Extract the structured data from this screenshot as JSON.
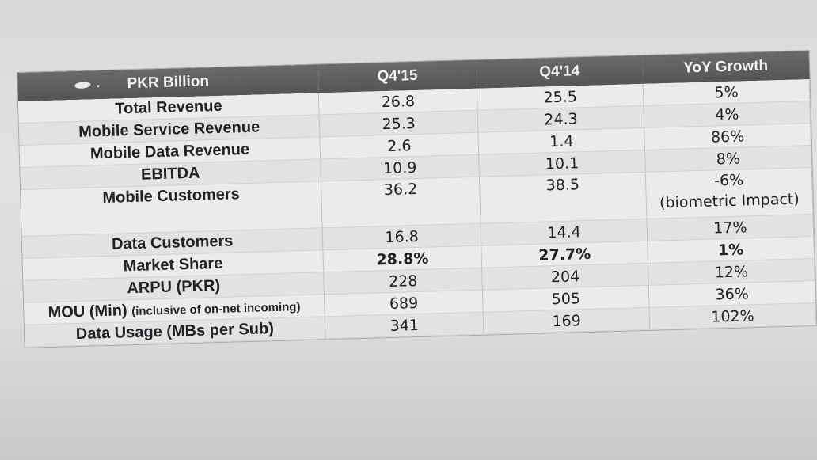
{
  "table": {
    "headers": [
      "PKR Billion",
      "Q4'15",
      "Q4'14",
      "YoY Growth"
    ],
    "rows": [
      {
        "label": "Total Revenue",
        "q415": "26.8",
        "q414": "25.5",
        "yoy": "5%"
      },
      {
        "label": "Mobile Service Revenue",
        "q415": "25.3",
        "q414": "24.3",
        "yoy": "4%"
      },
      {
        "label": "Mobile Data Revenue",
        "q415": "2.6",
        "q414": "1.4",
        "yoy": "86%"
      },
      {
        "label": "EBITDA",
        "q415": "10.9",
        "q414": "10.1",
        "yoy": "8%"
      },
      {
        "label": "Mobile Customers",
        "q415": "36.2",
        "q414": "38.5",
        "yoy": "-6%",
        "yoy_note": "(biometric Impact)"
      },
      {
        "label": "Data Customers",
        "q415": "16.8",
        "q414": "14.4",
        "yoy": "17%"
      },
      {
        "label": "Market Share",
        "q415": "28.8%",
        "q414": "27.7%",
        "yoy": "1%"
      },
      {
        "label": "ARPU (PKR)",
        "q415": "228",
        "q414": "204",
        "yoy": "12%"
      },
      {
        "label": "MOU (Min)",
        "label_note": "(inclusive of on-net incoming)",
        "q415": "689",
        "q414": "505",
        "yoy": "36%"
      },
      {
        "label": "Data Usage (MBs per Sub)",
        "q415": "341",
        "q414": "169",
        "yoy": "102%"
      }
    ]
  }
}
